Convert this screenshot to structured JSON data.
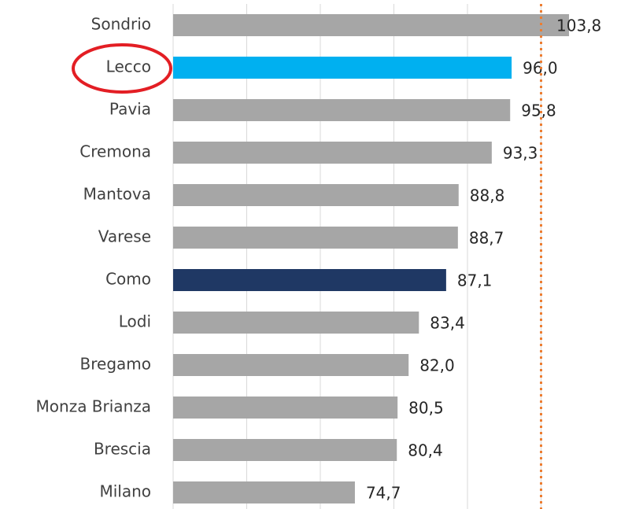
{
  "chart_data": {
    "type": "barh",
    "categories": [
      "Sondrio",
      "Lecco",
      "Pavia",
      "Cremona",
      "Mantova",
      "Varese",
      "Como",
      "Lodi",
      "Bregamo",
      "Monza Brianza",
      "Brescia",
      "Milano"
    ],
    "values": [
      103.8,
      96.0,
      95.8,
      93.3,
      88.8,
      88.7,
      87.1,
      83.4,
      82.0,
      80.5,
      80.4,
      74.7
    ],
    "value_labels": [
      "103,8",
      "96,0",
      "95,8",
      "93,3",
      "88,8",
      "88,7",
      "87,1",
      "83,4",
      "82,0",
      "80,5",
      "80,4",
      "74,7"
    ],
    "colors": [
      "#a6a6a6",
      "#00b0f0",
      "#a6a6a6",
      "#a6a6a6",
      "#a6a6a6",
      "#a6a6a6",
      "#1f3864",
      "#a6a6a6",
      "#a6a6a6",
      "#a6a6a6",
      "#a6a6a6",
      "#a6a6a6"
    ],
    "xlim": [
      50,
      110
    ],
    "grid_lines": [
      50,
      60,
      70,
      80,
      90,
      100
    ],
    "reference_line": 100,
    "reference_color": "#ed7d31"
  }
}
